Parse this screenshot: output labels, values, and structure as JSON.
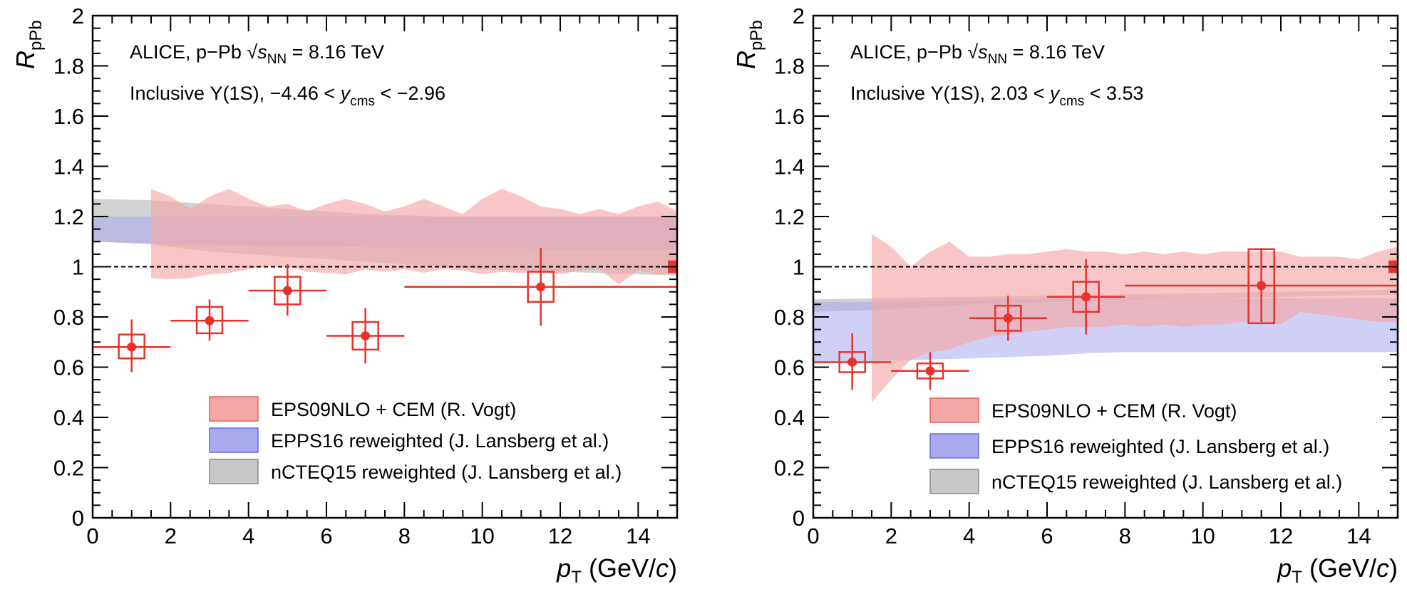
{
  "colors": {
    "eps09_fill": "#f4a7a7",
    "epps16_fill": "#a9a9f0",
    "ncteq15_fill": "#b3b3b3",
    "data": "#e8322b",
    "frame": "#000000"
  },
  "chart_data": [
    {
      "type": "scatter",
      "panel": "left",
      "xlabel": "p_T (GeV/c)",
      "xlabel_main": "p",
      "xlabel_sub": "T",
      "xlabel_rest": " (GeV/",
      "xlabel_c": "c",
      "xlabel_close": ")",
      "ylabel": "R_pPb",
      "ylabel_main": "R",
      "ylabel_sub": "pPb",
      "xlim": [
        0,
        15
      ],
      "ylim": [
        0,
        2
      ],
      "xticks": [
        "0",
        "2",
        "4",
        "6",
        "8",
        "10",
        "12",
        "14"
      ],
      "yticks": [
        "0",
        "0.2",
        "0.4",
        "0.6",
        "0.8",
        "1",
        "1.2",
        "1.4",
        "1.6",
        "1.8",
        "2"
      ],
      "reference_line": 1,
      "annotation_line1_a": "ALICE, p−Pb ",
      "annotation_line1_s": "s",
      "annotation_line1_nn": "NN",
      "annotation_line1_b": " = 8.16 TeV",
      "annotation_line2_a": "Inclusive Υ(1S), −4.46 < ",
      "annotation_line2_y": "y",
      "annotation_line2_cms": "cms",
      "annotation_line2_b": " < −2.96",
      "legend": [
        {
          "label": "EPS09NLO + CEM (R. Vogt)",
          "key": "eps09"
        },
        {
          "label": "EPPS16 reweighted (J. Lansberg et al.)",
          "key": "epps16"
        },
        {
          "label": "nCTEQ15 reweighted (J. Lansberg et al.)",
          "key": "ncteq15"
        }
      ],
      "global_uncertainty_box": {
        "x": 14.8,
        "y": 1.0,
        "half_height": 0.025
      },
      "points": [
        {
          "x": 1.0,
          "x_low": 0,
          "x_high": 2,
          "y": 0.68,
          "stat_low": 0.58,
          "stat_high": 0.79,
          "sys_low": 0.635,
          "sys_high": 0.73
        },
        {
          "x": 3.0,
          "x_low": 2,
          "x_high": 4,
          "y": 0.785,
          "stat_low": 0.705,
          "stat_high": 0.87,
          "sys_low": 0.735,
          "sys_high": 0.84
        },
        {
          "x": 5.0,
          "x_low": 4,
          "x_high": 6,
          "y": 0.905,
          "stat_low": 0.805,
          "stat_high": 1.01,
          "sys_low": 0.85,
          "sys_high": 0.96
        },
        {
          "x": 7.0,
          "x_low": 6,
          "x_high": 8,
          "y": 0.725,
          "stat_low": 0.615,
          "stat_high": 0.835,
          "sys_low": 0.67,
          "sys_high": 0.78
        },
        {
          "x": 11.5,
          "x_low": 8,
          "x_high": 15,
          "y": 0.92,
          "stat_low": 0.765,
          "stat_high": 1.075,
          "sys_low": 0.86,
          "sys_high": 0.98
        }
      ],
      "bands": {
        "ncteq15": {
          "x": [
            0,
            1.5,
            2,
            3,
            4,
            5,
            6,
            7,
            8,
            9,
            10,
            11,
            12,
            13,
            14,
            15
          ],
          "lower": [
            1.1,
            1.09,
            1.08,
            1.06,
            1.05,
            1.04,
            1.03,
            1.02,
            1.01,
            1.0,
            0.99,
            0.985,
            0.98,
            0.975,
            0.97,
            0.965
          ],
          "upper": [
            1.27,
            1.265,
            1.26,
            1.25,
            1.24,
            1.23,
            1.22,
            1.21,
            1.205,
            1.2,
            1.2,
            1.2,
            1.2,
            1.2,
            1.2,
            1.2
          ]
        },
        "epps16": {
          "x": [
            0,
            2,
            4,
            6,
            8,
            10,
            12,
            14,
            15
          ],
          "lower": [
            1.1,
            1.09,
            1.085,
            1.08,
            1.075,
            1.075,
            1.07,
            1.07,
            1.07
          ],
          "upper": [
            1.2,
            1.2,
            1.2,
            1.2,
            1.2,
            1.2,
            1.2,
            1.2,
            1.2
          ]
        },
        "eps09": {
          "x": [
            1.5,
            2,
            2.5,
            3,
            3.5,
            4,
            4.5,
            5,
            5.5,
            6,
            6.5,
            7,
            7.5,
            8,
            8.5,
            9,
            9.5,
            10,
            10.5,
            11,
            11.5,
            12,
            12.5,
            13,
            13.5,
            14,
            14.5,
            15
          ],
          "lower": [
            0.955,
            0.95,
            0.955,
            0.97,
            0.975,
            0.99,
            1.0,
            1.0,
            0.98,
            0.975,
            0.97,
            0.99,
            0.98,
            0.99,
            0.975,
            0.99,
            0.985,
            0.97,
            0.98,
            0.975,
            0.98,
            0.97,
            0.985,
            0.99,
            0.93,
            0.985,
            0.97,
            0.975
          ],
          "upper": [
            1.31,
            1.28,
            1.23,
            1.28,
            1.31,
            1.27,
            1.24,
            1.25,
            1.22,
            1.25,
            1.27,
            1.25,
            1.22,
            1.24,
            1.27,
            1.24,
            1.21,
            1.27,
            1.31,
            1.28,
            1.24,
            1.23,
            1.21,
            1.23,
            1.21,
            1.24,
            1.26,
            1.22
          ]
        }
      }
    },
    {
      "type": "scatter",
      "panel": "right",
      "xlabel": "p_T (GeV/c)",
      "xlabel_main": "p",
      "xlabel_sub": "T",
      "xlabel_rest": " (GeV/",
      "xlabel_c": "c",
      "xlabel_close": ")",
      "ylabel": "R_pPb",
      "ylabel_main": "R",
      "ylabel_sub": "pPb",
      "xlim": [
        0,
        15
      ],
      "ylim": [
        0,
        2
      ],
      "xticks": [
        "0",
        "2",
        "4",
        "6",
        "8",
        "10",
        "12",
        "14"
      ],
      "yticks": [
        "0",
        "0.2",
        "0.4",
        "0.6",
        "0.8",
        "1",
        "1.2",
        "1.4",
        "1.6",
        "1.8",
        "2"
      ],
      "reference_line": 1,
      "annotation_line1_a": "ALICE, p−Pb ",
      "annotation_line1_s": "s",
      "annotation_line1_nn": "NN",
      "annotation_line1_b": " = 8.16 TeV",
      "annotation_line2_a": "Inclusive Υ(1S), 2.03 < ",
      "annotation_line2_y": "y",
      "annotation_line2_cms": "cms",
      "annotation_line2_b": " < 3.53",
      "legend": [
        {
          "label": "EPS09NLO + CEM (R. Vogt)",
          "key": "eps09"
        },
        {
          "label": "EPPS16 reweighted (J. Lansberg et al.)",
          "key": "epps16"
        },
        {
          "label": "nCTEQ15 reweighted (J. Lansberg et al.)",
          "key": "ncteq15"
        }
      ],
      "global_uncertainty_box": {
        "x": 14.8,
        "y": 1.0,
        "half_height": 0.025
      },
      "points": [
        {
          "x": 1.0,
          "x_low": 0,
          "x_high": 2,
          "y": 0.62,
          "stat_low": 0.51,
          "stat_high": 0.735,
          "sys_low": 0.58,
          "sys_high": 0.66
        },
        {
          "x": 3.0,
          "x_low": 2,
          "x_high": 4,
          "y": 0.585,
          "stat_low": 0.51,
          "stat_high": 0.66,
          "sys_low": 0.555,
          "sys_high": 0.615
        },
        {
          "x": 5.0,
          "x_low": 4,
          "x_high": 6,
          "y": 0.795,
          "stat_low": 0.705,
          "stat_high": 0.885,
          "sys_low": 0.745,
          "sys_high": 0.845
        },
        {
          "x": 7.0,
          "x_low": 6,
          "x_high": 8,
          "y": 0.88,
          "stat_low": 0.73,
          "stat_high": 1.03,
          "sys_low": 0.82,
          "sys_high": 0.94
        },
        {
          "x": 11.5,
          "x_low": 8,
          "x_high": 15,
          "y": 0.925,
          "stat_low": 0.78,
          "stat_high": 1.075,
          "sys_low": 0.775,
          "sys_high": 1.07
        }
      ],
      "bands": {
        "ncteq15": {
          "x": [
            0,
            2,
            4,
            6,
            8,
            10,
            12,
            14,
            15
          ],
          "lower": [
            0.82,
            0.83,
            0.85,
            0.86,
            0.87,
            0.875,
            0.88,
            0.885,
            0.89
          ],
          "upper": [
            0.87,
            0.875,
            0.88,
            0.885,
            0.89,
            0.895,
            0.9,
            0.905,
            0.91
          ]
        },
        "epps16": {
          "x": [
            0,
            1,
            2,
            3,
            4,
            5,
            6,
            7,
            8,
            9,
            10,
            11,
            12,
            13,
            14,
            15
          ],
          "lower": [
            0.62,
            0.62,
            0.625,
            0.63,
            0.635,
            0.64,
            0.645,
            0.655,
            0.66,
            0.66,
            0.66,
            0.66,
            0.66,
            0.66,
            0.66,
            0.66
          ],
          "upper": [
            0.86,
            0.86,
            0.86,
            0.865,
            0.865,
            0.87,
            0.87,
            0.875,
            0.875,
            0.875,
            0.875,
            0.875,
            0.875,
            0.875,
            0.875,
            0.875
          ]
        },
        "eps09": {
          "x": [
            1.5,
            2,
            2.5,
            3,
            3.5,
            4,
            4.5,
            5,
            5.5,
            6,
            6.5,
            7,
            7.5,
            8,
            8.5,
            9,
            9.5,
            10,
            10.5,
            11,
            11.5,
            12,
            12.5,
            13,
            13.5,
            14,
            14.5,
            15
          ],
          "lower": [
            0.46,
            0.55,
            0.63,
            0.66,
            0.67,
            0.7,
            0.72,
            0.73,
            0.74,
            0.75,
            0.76,
            0.76,
            0.76,
            0.77,
            0.76,
            0.77,
            0.76,
            0.77,
            0.77,
            0.78,
            0.78,
            0.77,
            0.82,
            0.81,
            0.8,
            0.79,
            0.78,
            0.78
          ],
          "upper": [
            1.13,
            1.08,
            1.0,
            1.06,
            1.1,
            1.04,
            1.04,
            1.05,
            1.05,
            1.06,
            1.07,
            1.06,
            1.06,
            1.05,
            1.06,
            1.05,
            1.06,
            1.05,
            1.06,
            1.06,
            1.06,
            1.06,
            1.04,
            1.04,
            1.04,
            1.03,
            1.06,
            1.08
          ]
        }
      }
    }
  ]
}
